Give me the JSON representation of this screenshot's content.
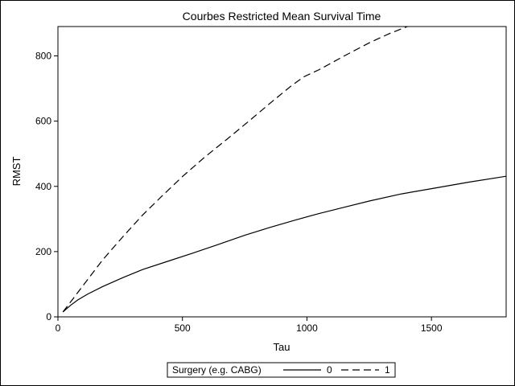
{
  "chart_data": {
    "type": "line",
    "title": "Courbes Restricted Mean Survival Time",
    "xlabel": "Tau",
    "ylabel": "RMST",
    "xlim": [
      0,
      1800
    ],
    "ylim": [
      0,
      890
    ],
    "xticks": [
      0,
      500,
      1000,
      1500
    ],
    "yticks": [
      0,
      200,
      400,
      600,
      800
    ],
    "grid": false,
    "legend_position": "bottom-center",
    "legend_title": "Surgery (e.g. CABG)",
    "series": [
      {
        "name": "0",
        "line_style": "solid",
        "color": "#000000",
        "x": [
          20,
          50,
          80,
          120,
          180,
          260,
          340,
          440,
          540,
          640,
          750,
          850,
          950,
          1050,
          1150,
          1250,
          1380,
          1500,
          1650,
          1800
        ],
        "y": [
          15,
          35,
          52,
          70,
          93,
          120,
          145,
          170,
          195,
          221,
          250,
          274,
          296,
          317,
          336,
          355,
          377,
          393,
          413,
          431
        ]
      },
      {
        "name": "1",
        "line_style": "dashed",
        "color": "#000000",
        "x": [
          20,
          60,
          100,
          180,
          260,
          340,
          420,
          500,
          590,
          680,
          770,
          860,
          940,
          990,
          1050,
          1150,
          1250,
          1330,
          1410
        ],
        "y": [
          15,
          55,
          95,
          175,
          245,
          312,
          372,
          430,
          490,
          545,
          602,
          660,
          710,
          737,
          758,
          800,
          840,
          868,
          892
        ]
      }
    ]
  }
}
